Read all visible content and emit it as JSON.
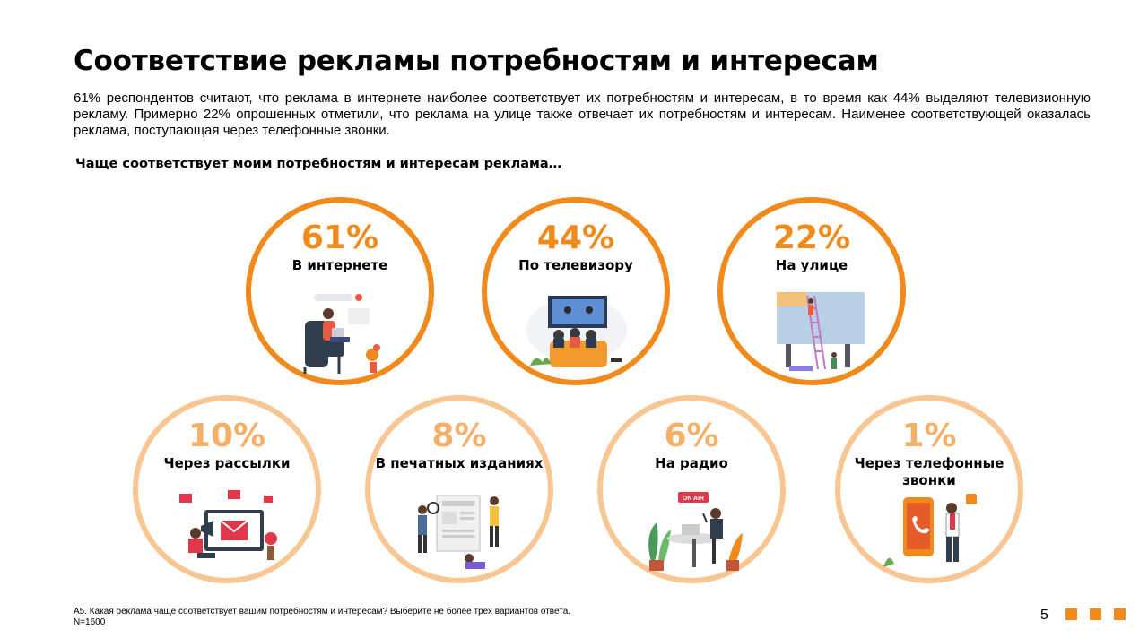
{
  "title": "Соответствие рекламы потребностям и интересам",
  "intro": "61% респондентов считают, что реклама в интернете наиболее соответствует их потребностям и интересам, в то время как 44% выделяют телевизионную рекламу. Примерно 22% опрошенных отметили, что реклама на улице также отвечает их потребностям и интересам. Наименее соответствующей оказалась реклама, поступающая через телефонные звонки.",
  "subtitle": "Чаще соответствует моим потребностям и интересам реклама…",
  "items": [
    {
      "percent": "61%",
      "label": "В интернете",
      "value": 61,
      "icon": "person-with-laptop-icon"
    },
    {
      "percent": "44%",
      "label": "По телевизору",
      "value": 44,
      "icon": "family-watching-tv-icon"
    },
    {
      "percent": "22%",
      "label": "На улице",
      "value": 22,
      "icon": "billboard-ladder-icon"
    },
    {
      "percent": "10%",
      "label": "Через рассылки",
      "value": 10,
      "icon": "email-megaphone-icon"
    },
    {
      "percent": "8%",
      "label": "В печатных изданиях",
      "value": 8,
      "icon": "newspaper-icon"
    },
    {
      "percent": "6%",
      "label": "На радио",
      "value": 6,
      "icon": "radio-studio-icon"
    },
    {
      "percent": "1%",
      "label": "Через телефонные звонки",
      "value": 1,
      "icon": "phone-call-icon"
    }
  ],
  "footnote": {
    "question": "А5.  Какая реклама чаще соответствует вашим потребностям и интересам? Выберите не более трех вариантов ответа.",
    "sample": "N=1600"
  },
  "page_number": "5",
  "colors": {
    "accent": "#f08a1c",
    "accent_light": "#f8c693"
  }
}
